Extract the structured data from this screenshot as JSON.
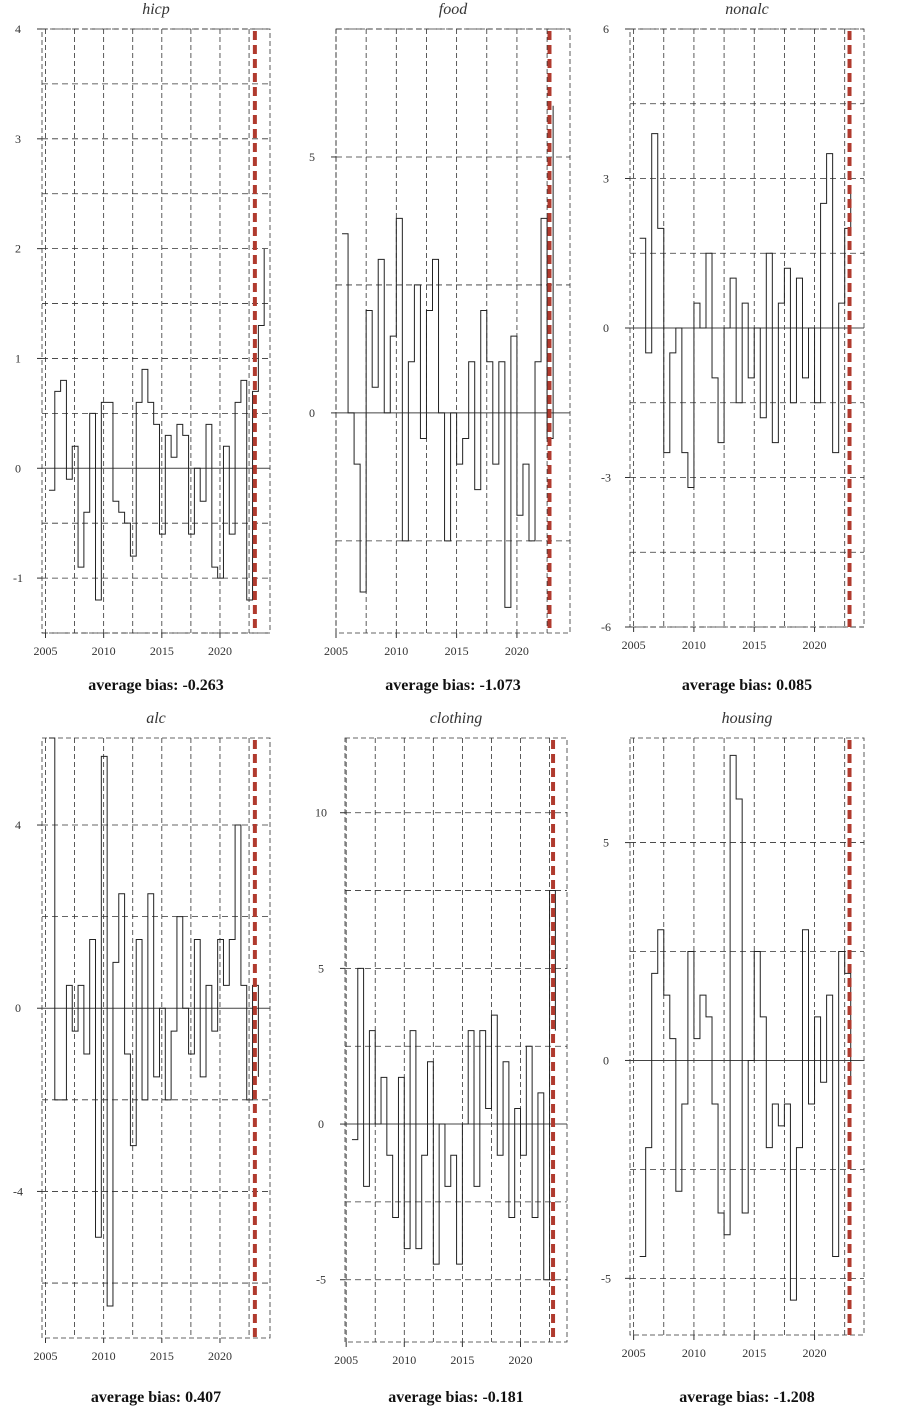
{
  "chart_data": [
    {
      "type": "line",
      "title": "hicp",
      "bias_label": "average bias: -0.263",
      "ylim": [
        -1.5,
        4
      ],
      "yticks": [
        4,
        3,
        2,
        1,
        0,
        -1
      ],
      "grid_step": 0.5,
      "xticks": [
        2005,
        2010,
        2015,
        2020
      ],
      "xlim": [
        2004.7,
        2024.3
      ],
      "marker_x": 2023.0,
      "x_start": 2005.3,
      "x_step": 0.5,
      "values": [
        -0.2,
        0.7,
        0.8,
        -0.1,
        0.2,
        -0.9,
        -0.4,
        0.5,
        -1.2,
        0.6,
        0.6,
        -0.3,
        -0.4,
        -0.5,
        -0.8,
        0.6,
        0.9,
        0.6,
        0.4,
        -0.6,
        0.3,
        0.1,
        0.4,
        0.3,
        -0.6,
        0.0,
        -0.3,
        0.4,
        -0.9,
        -1.0,
        0.2,
        -0.6,
        0.6,
        0.8,
        -1.2,
        0.7,
        1.3,
        2.0
      ]
    },
    {
      "type": "line",
      "title": "food",
      "bias_label": "average bias: -1.073",
      "ylim": [
        -4.3,
        7.5
      ],
      "yticks": [
        5,
        0
      ],
      "grid_step": 2.5,
      "xticks": [
        2005,
        2010,
        2015,
        2020
      ],
      "xlim": [
        2005,
        2024.4
      ],
      "marker_x": 2022.7,
      "x_start": 2005.5,
      "x_step": 0.5,
      "values": [
        3.5,
        0,
        -1,
        -3.5,
        2,
        0.5,
        3,
        0,
        1.5,
        3.8,
        -2.5,
        1,
        2.5,
        -0.5,
        2,
        3,
        0,
        -2.5,
        0,
        -1,
        -0.5,
        1,
        -1.5,
        2,
        1,
        -1,
        1,
        -3.8,
        1.5,
        -2,
        -1,
        -2.5,
        1,
        3.8,
        -0.5,
        6
      ]
    },
    {
      "type": "line",
      "title": "nonalc",
      "bias_label": "average bias: 0.085",
      "ylim": [
        -6,
        6
      ],
      "yticks": [
        6,
        3,
        0,
        -3,
        -6
      ],
      "grid_step": 1.5,
      "xticks": [
        2005,
        2010,
        2015,
        2020
      ],
      "xlim": [
        2004.7,
        2024.1
      ],
      "marker_x": 2022.9,
      "x_start": 2005.5,
      "x_step": 0.5,
      "values": [
        1.8,
        -0.5,
        3.9,
        2,
        -2.5,
        -0.5,
        0,
        -2.5,
        -3.2,
        0.5,
        0,
        1.5,
        -1,
        -2.3,
        0,
        1,
        -1.5,
        0.5,
        -1,
        0,
        -1.8,
        1.5,
        -2.3,
        0.5,
        1.2,
        -1.5,
        1,
        -1,
        0,
        -1.5,
        2.5,
        3.5,
        -2.5,
        0.5,
        2,
        2.8
      ]
    },
    {
      "type": "line",
      "title": "alc",
      "bias_label": "average bias: 0.407",
      "ylim": [
        -7.2,
        5.9
      ],
      "yticks": [
        4,
        0,
        -4
      ],
      "grid_step": 2,
      "xticks": [
        2005,
        2010,
        2015,
        2020
      ],
      "xlim": [
        2004.7,
        2024.3
      ],
      "marker_x": 2023.0,
      "x_start": 2005.3,
      "x_step": 0.5,
      "values": [
        5.9,
        -2,
        -2,
        0.5,
        -0.5,
        0.5,
        -1,
        1.5,
        -5,
        5.5,
        -6.5,
        1,
        2.5,
        -1,
        -3,
        1.5,
        -2,
        2.5,
        -1.5,
        0,
        -2,
        -0.5,
        2,
        0,
        -1,
        1.5,
        -1.5,
        0.5,
        -0.5,
        1.5,
        0.5,
        1.5,
        4,
        0.5,
        -2,
        0.5,
        -1.5
      ]
    },
    {
      "type": "line",
      "title": "clothing",
      "bias_label": "average bias: -0.181",
      "ylim": [
        -7,
        12.4
      ],
      "yticks": [
        10,
        5,
        0,
        -5
      ],
      "grid_step": 2.5,
      "xticks": [
        2005,
        2010,
        2015,
        2020
      ],
      "xlim": [
        2004.9,
        2024.0
      ],
      "marker_x": 2022.8,
      "x_start": 2005.5,
      "x_step": 0.5,
      "values": [
        -0.5,
        5,
        -2,
        3,
        0,
        1.5,
        -1,
        -3,
        1.5,
        -4,
        3,
        -4,
        -1,
        2,
        -4.5,
        0,
        -2,
        -1,
        -4.5,
        0,
        3,
        -2,
        3,
        0.5,
        3.5,
        -1,
        2,
        -3,
        0.5,
        -1,
        2.5,
        -3,
        1,
        -5,
        7.5,
        3
      ]
    },
    {
      "type": "line",
      "title": "housing",
      "bias_label": "average bias: -1.208",
      "ylim": [
        -6.3,
        7.4
      ],
      "yticks": [
        5,
        0,
        -5
      ],
      "grid_step": 2.5,
      "xticks": [
        2005,
        2010,
        2015,
        2020
      ],
      "xlim": [
        2004.7,
        2024.1
      ],
      "marker_x": 2022.9,
      "x_start": 2005.5,
      "x_step": 0.5,
      "values": [
        -4.5,
        -2,
        2,
        3,
        1.5,
        0.5,
        -3,
        -1,
        2.5,
        0.5,
        1.5,
        1,
        -1,
        -3.5,
        -4,
        7,
        6,
        -3.5,
        0,
        2.5,
        1,
        -2,
        -1,
        -1.5,
        -1,
        -5.5,
        -2,
        3,
        -1,
        1,
        -0.5,
        1.5,
        -4.5,
        2.5,
        2,
        -0.5
      ]
    }
  ],
  "colors": {
    "series": "#222222",
    "marker": "#b03a2e",
    "grid": "#333333"
  }
}
